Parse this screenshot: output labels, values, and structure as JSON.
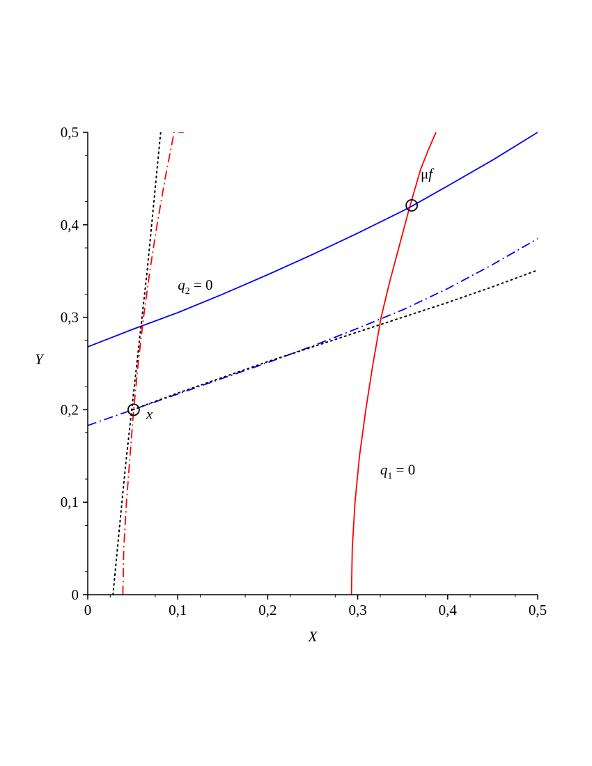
{
  "chart_data": {
    "type": "line",
    "title": "",
    "xlabel": "X",
    "ylabel": "Y",
    "xlim": [
      0,
      0.5
    ],
    "ylim": [
      0,
      0.5
    ],
    "x_ticks": [
      0,
      0.1,
      0.2,
      0.3,
      0.4,
      0.5
    ],
    "y_ticks": [
      0,
      0.1,
      0.2,
      0.3,
      0.4,
      0.5
    ],
    "x_tick_labels": [
      "0",
      "0,1",
      "0,2",
      "0,3",
      "0,4",
      "0,5"
    ],
    "y_tick_labels": [
      "0",
      "0,1",
      "0,2",
      "0,3",
      "0,4",
      "0,5"
    ],
    "grid": false,
    "legend": "none",
    "series": [
      {
        "color": "#ff0000",
        "style": "solid",
        "x": [
          0.293,
          0.294,
          0.297,
          0.302,
          0.309,
          0.317,
          0.326,
          0.336,
          0.347,
          0.358,
          0.37,
          0.378,
          0.387
        ],
        "y": [
          0.0,
          0.05,
          0.1,
          0.15,
          0.2,
          0.25,
          0.3,
          0.34,
          0.38,
          0.42,
          0.46,
          0.48,
          0.5
        ]
      },
      {
        "color": "#0000ff",
        "style": "solid",
        "x": [
          0.0,
          0.05,
          0.1,
          0.15,
          0.2,
          0.25,
          0.3,
          0.35,
          0.36,
          0.4,
          0.45,
          0.5
        ],
        "y": [
          0.268,
          0.287,
          0.305,
          0.325,
          0.346,
          0.368,
          0.391,
          0.415,
          0.42,
          0.442,
          0.47,
          0.5
        ]
      },
      {
        "color": "#ff0000",
        "style": "dashdot",
        "x": [
          0.039,
          0.04,
          0.043,
          0.047,
          0.051,
          0.056,
          0.062,
          0.069,
          0.077,
          0.086,
          0.096,
          0.107
        ],
        "y": [
          0.0,
          0.05,
          0.1,
          0.15,
          0.2,
          0.25,
          0.3,
          0.35,
          0.4,
          0.45,
          0.5,
          0.5
        ]
      },
      {
        "color": "#0000ff",
        "style": "dashdot",
        "x": [
          0.0,
          0.05,
          0.1,
          0.15,
          0.2,
          0.25,
          0.3,
          0.35,
          0.4,
          0.45,
          0.5
        ],
        "y": [
          0.183,
          0.2,
          0.217,
          0.234,
          0.251,
          0.269,
          0.288,
          0.308,
          0.331,
          0.357,
          0.385
        ]
      },
      {
        "color": "#000000",
        "style": "dotted",
        "x": [
          0.028,
          0.035,
          0.042,
          0.05,
          0.058,
          0.066,
          0.074,
          0.081
        ],
        "y": [
          0.0,
          0.07,
          0.14,
          0.21,
          0.28,
          0.35,
          0.43,
          0.5
        ]
      },
      {
        "color": "#000000",
        "style": "dotted",
        "x": [
          0.05,
          0.1,
          0.15,
          0.2,
          0.25,
          0.3,
          0.35,
          0.4,
          0.45,
          0.5
        ],
        "y": [
          0.2,
          0.218,
          0.235,
          0.252,
          0.268,
          0.284,
          0.3,
          0.316,
          0.333,
          0.351
        ]
      }
    ],
    "markers": [
      {
        "x": 0.051,
        "y": 0.2
      },
      {
        "x": 0.36,
        "y": 0.421
      }
    ],
    "annotations": [
      {
        "kind": "eq",
        "var": "q",
        "sub": "2",
        "rhs": " = 0",
        "x": 0.1,
        "y": 0.33
      },
      {
        "kind": "eq",
        "var": "q",
        "sub": "1",
        "rhs": " = 0",
        "x": 0.325,
        "y": 0.13
      },
      {
        "kind": "plain",
        "text": "x",
        "x": 0.065,
        "y": 0.19
      },
      {
        "kind": "mu",
        "mu": "μ",
        "text": "f",
        "x": 0.37,
        "y": 0.45
      }
    ]
  }
}
